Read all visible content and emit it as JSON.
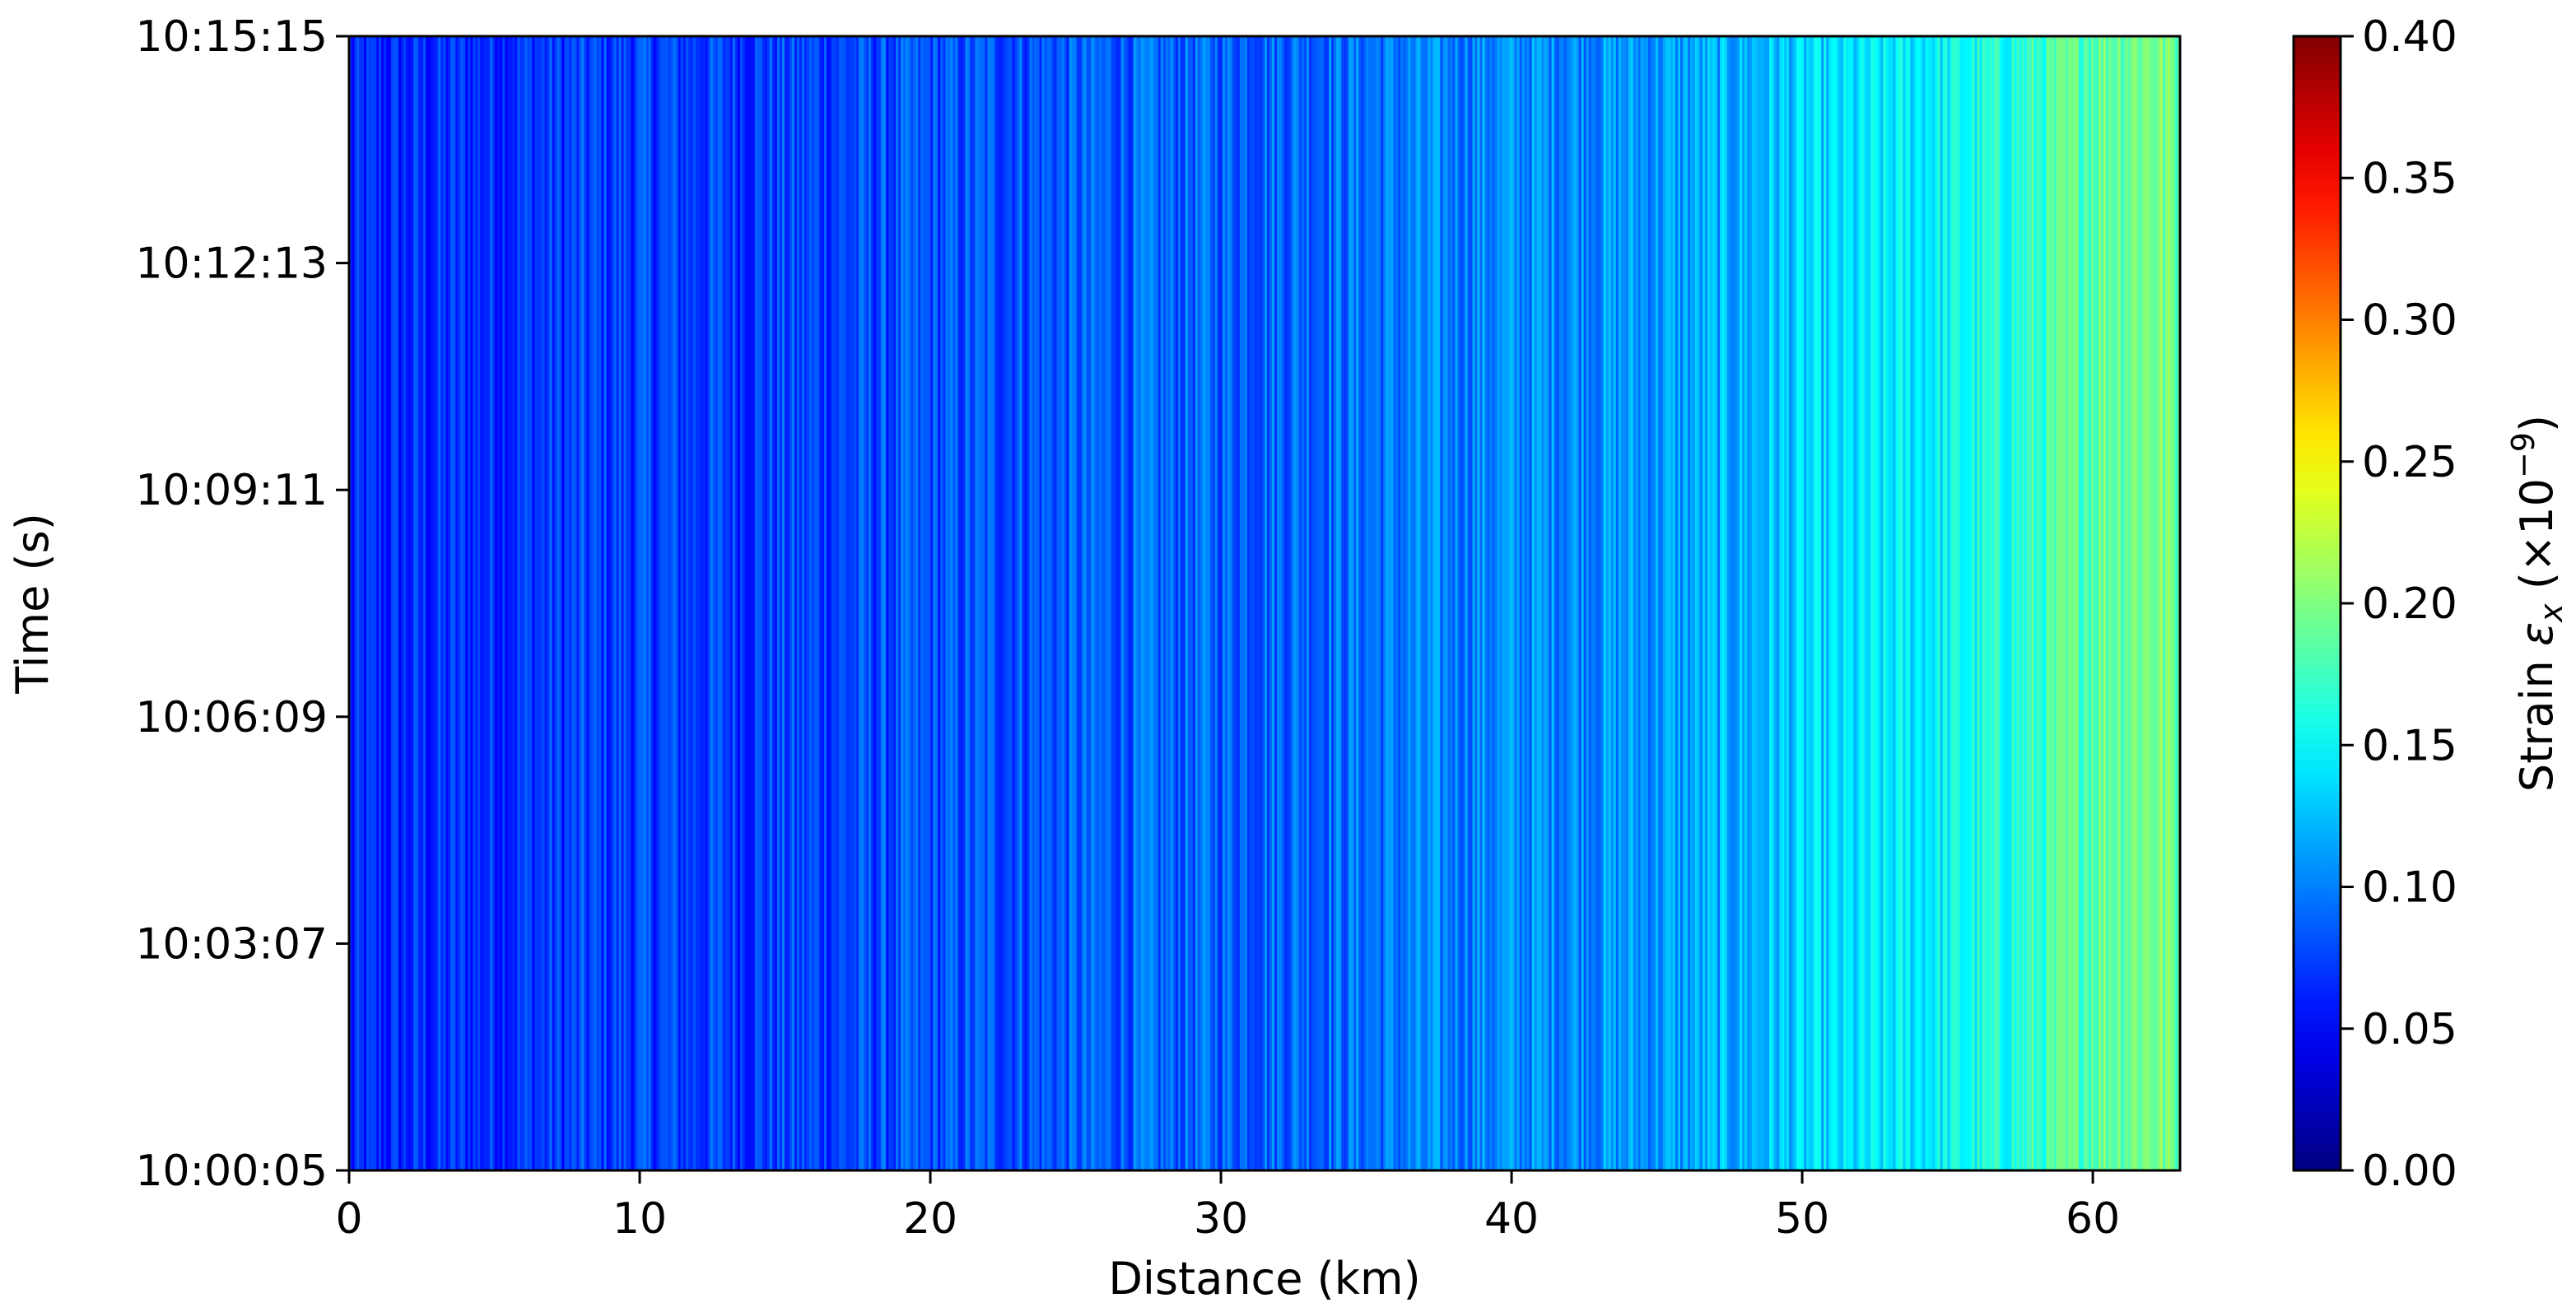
{
  "chart_data": {
    "type": "heatmap",
    "title": "",
    "xlabel": "Distance (km)",
    "ylabel": "Time (s)",
    "xlim": [
      0,
      63
    ],
    "x_ticks": [
      0,
      10,
      20,
      30,
      40,
      50,
      60
    ],
    "x_tick_labels": [
      "0",
      "10",
      "20",
      "30",
      "40",
      "50",
      "60"
    ],
    "y_tick_labels": [
      "10:00:05",
      "10:03:07",
      "10:06:09",
      "10:09:11",
      "10:12:13",
      "10:15:15"
    ],
    "ylim": [
      "10:00:05",
      "10:15:15"
    ],
    "colormap": "jet",
    "colorbar": {
      "label_prefix": "Strain ",
      "label_symbol": "ε",
      "label_subscript": "x",
      "label_suffix": " (×10",
      "label_exponent": "−9",
      "label_close": ")",
      "range": [
        0.0,
        0.4
      ],
      "ticks": [
        0.0,
        0.05,
        0.1,
        0.15,
        0.2,
        0.25,
        0.3,
        0.35,
        0.4
      ],
      "tick_labels": [
        "0.00",
        "0.05",
        "0.10",
        "0.15",
        "0.20",
        "0.25",
        "0.30",
        "0.35",
        "0.40"
      ]
    },
    "mean_strain_profile": {
      "distance_km": [
        0,
        2,
        5,
        10,
        15,
        20,
        25,
        30,
        35,
        40,
        45,
        48,
        50,
        53,
        55,
        57,
        60,
        62,
        63
      ],
      "strain": [
        0.06,
        0.065,
        0.07,
        0.075,
        0.075,
        0.08,
        0.085,
        0.09,
        0.095,
        0.105,
        0.11,
        0.12,
        0.13,
        0.14,
        0.15,
        0.16,
        0.19,
        0.2,
        0.19
      ]
    },
    "grid": false
  }
}
